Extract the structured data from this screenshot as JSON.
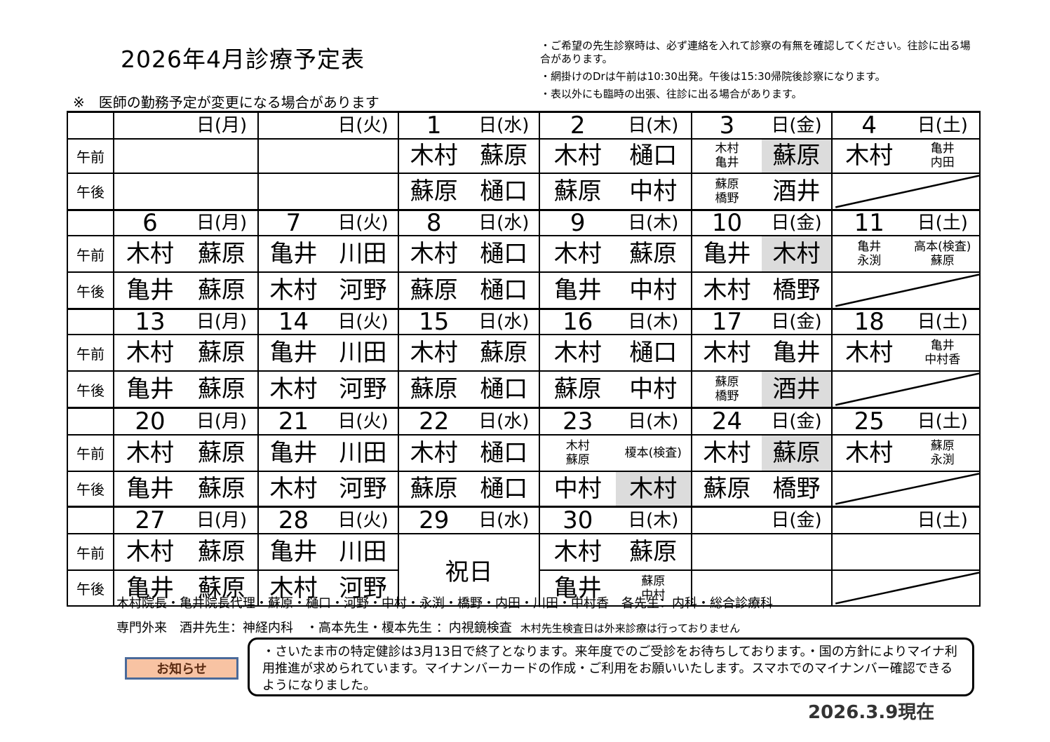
{
  "header": {
    "title": "2026年4月診療予定表",
    "subtitle": "※　医師の勤務予定が変更になる場合があります",
    "notes": [
      "・ご希望の先生診察時は、必ず連絡を入れて診察の有無を確認してください。往診に出る場合があります。",
      "・網掛けのDrは午前は10:30出発。午後は15:30帰院後診察になります。",
      "・表以外にも臨時の出張、往診に出る場合があります。"
    ]
  },
  "schedule": {
    "row_labels": {
      "am": "午前",
      "pm": "午後"
    },
    "shade_color": "#dcdcdc",
    "weeks": [
      {
        "days": [
          {
            "num": "",
            "dow": "日(月)",
            "am": null,
            "pm": null
          },
          {
            "num": "",
            "dow": "日(火)",
            "am": null,
            "pm": null
          },
          {
            "num": "1",
            "dow": "日(水)",
            "am": [
              {
                "t": "木村"
              },
              {
                "t": "蘇原"
              }
            ],
            "pm": [
              {
                "t": "蘇原"
              },
              {
                "t": "樋口"
              }
            ]
          },
          {
            "num": "2",
            "dow": "日(木)",
            "am": [
              {
                "t": "木村"
              },
              {
                "t": "樋口"
              }
            ],
            "pm": [
              {
                "t": "蘇原"
              },
              {
                "t": "中村"
              }
            ]
          },
          {
            "num": "3",
            "dow": "日(金)",
            "am": [
              {
                "s": [
                  "木村",
                  "亀井"
                ]
              },
              {
                "t": "蘇原",
                "shade": true
              }
            ],
            "pm": [
              {
                "s": [
                  "蘇原",
                  "橋野"
                ]
              },
              {
                "t": "酒井"
              }
            ]
          },
          {
            "num": "4",
            "dow": "日(土)",
            "am": [
              {
                "t": "木村"
              },
              {
                "s": [
                  "亀井",
                  "内田"
                ]
              }
            ],
            "pm": "closed"
          }
        ]
      },
      {
        "days": [
          {
            "num": "6",
            "dow": "日(月)",
            "am": [
              {
                "t": "木村"
              },
              {
                "t": "蘇原"
              }
            ],
            "pm": [
              {
                "t": "亀井"
              },
              {
                "t": "蘇原"
              }
            ]
          },
          {
            "num": "7",
            "dow": "日(火)",
            "am": [
              {
                "t": "亀井"
              },
              {
                "t": "川田"
              }
            ],
            "pm": [
              {
                "t": "木村"
              },
              {
                "t": "河野"
              }
            ]
          },
          {
            "num": "8",
            "dow": "日(水)",
            "am": [
              {
                "t": "木村"
              },
              {
                "t": "樋口"
              }
            ],
            "pm": [
              {
                "t": "蘇原"
              },
              {
                "t": "樋口"
              }
            ]
          },
          {
            "num": "9",
            "dow": "日(木)",
            "am": [
              {
                "t": "木村"
              },
              {
                "t": "蘇原"
              }
            ],
            "pm": [
              {
                "t": "亀井"
              },
              {
                "t": "中村"
              }
            ]
          },
          {
            "num": "10",
            "dow": "日(金)",
            "am": [
              {
                "t": "亀井"
              },
              {
                "t": "木村",
                "shade": true
              }
            ],
            "pm": [
              {
                "t": "木村"
              },
              {
                "t": "橋野"
              }
            ]
          },
          {
            "num": "11",
            "dow": "日(土)",
            "am": [
              {
                "s": [
                  "亀井",
                  "永渕"
                ]
              },
              {
                "s": [
                  "高本(検査)",
                  "蘇原"
                ]
              }
            ],
            "pm": "closed"
          }
        ]
      },
      {
        "days": [
          {
            "num": "13",
            "dow": "日(月)",
            "am": [
              {
                "t": "木村"
              },
              {
                "t": "蘇原"
              }
            ],
            "pm": [
              {
                "t": "亀井"
              },
              {
                "t": "蘇原"
              }
            ]
          },
          {
            "num": "14",
            "dow": "日(火)",
            "am": [
              {
                "t": "亀井"
              },
              {
                "t": "川田"
              }
            ],
            "pm": [
              {
                "t": "木村"
              },
              {
                "t": "河野"
              }
            ]
          },
          {
            "num": "15",
            "dow": "日(水)",
            "am": [
              {
                "t": "木村"
              },
              {
                "t": "蘇原"
              }
            ],
            "pm": [
              {
                "t": "蘇原"
              },
              {
                "t": "樋口"
              }
            ]
          },
          {
            "num": "16",
            "dow": "日(木)",
            "am": [
              {
                "t": "木村"
              },
              {
                "t": "樋口"
              }
            ],
            "pm": [
              {
                "t": "蘇原"
              },
              {
                "t": "中村"
              }
            ]
          },
          {
            "num": "17",
            "dow": "日(金)",
            "am": [
              {
                "t": "木村"
              },
              {
                "t": "亀井"
              }
            ],
            "pm": [
              {
                "s": [
                  "蘇原",
                  "橋野"
                ]
              },
              {
                "t": "酒井",
                "shade": true
              }
            ]
          },
          {
            "num": "18",
            "dow": "日(土)",
            "am": [
              {
                "t": "木村"
              },
              {
                "s": [
                  "亀井",
                  "中村香"
                ]
              }
            ],
            "pm": "closed"
          }
        ]
      },
      {
        "days": [
          {
            "num": "20",
            "dow": "日(月)",
            "am": [
              {
                "t": "木村"
              },
              {
                "t": "蘇原"
              }
            ],
            "pm": [
              {
                "t": "亀井"
              },
              {
                "t": "蘇原"
              }
            ]
          },
          {
            "num": "21",
            "dow": "日(火)",
            "am": [
              {
                "t": "亀井"
              },
              {
                "t": "川田"
              }
            ],
            "pm": [
              {
                "t": "木村"
              },
              {
                "t": "河野"
              }
            ]
          },
          {
            "num": "22",
            "dow": "日(水)",
            "am": [
              {
                "t": "木村"
              },
              {
                "t": "樋口"
              }
            ],
            "pm": [
              {
                "t": "蘇原"
              },
              {
                "t": "樋口"
              }
            ]
          },
          {
            "num": "23",
            "dow": "日(木)",
            "am": [
              {
                "s": [
                  "木村",
                  "蘇原"
                ]
              },
              {
                "s": [
                  "榎本(検査)"
                ]
              }
            ],
            "pm": [
              {
                "t": "中村"
              },
              {
                "t": "木村",
                "shade": true
              }
            ]
          },
          {
            "num": "24",
            "dow": "日(金)",
            "am": [
              {
                "t": "木村"
              },
              {
                "t": "蘇原",
                "shade": true
              }
            ],
            "pm": [
              {
                "t": "蘇原"
              },
              {
                "t": "橋野"
              }
            ]
          },
          {
            "num": "25",
            "dow": "日(土)",
            "am": [
              {
                "t": "木村"
              },
              {
                "s": [
                  "蘇原",
                  "永渕"
                ]
              }
            ],
            "pm": "closed"
          }
        ]
      },
      {
        "days": [
          {
            "num": "27",
            "dow": "日(月)",
            "am": [
              {
                "t": "木村"
              },
              {
                "t": "蘇原"
              }
            ],
            "pm": [
              {
                "t": "亀井"
              },
              {
                "t": "蘇原"
              }
            ]
          },
          {
            "num": "28",
            "dow": "日(火)",
            "am": [
              {
                "t": "亀井"
              },
              {
                "t": "川田"
              }
            ],
            "pm": [
              {
                "t": "木村"
              },
              {
                "t": "河野"
              }
            ]
          },
          {
            "num": "29",
            "dow": "日(水)",
            "holiday": "祝日"
          },
          {
            "num": "30",
            "dow": "日(木)",
            "am": [
              {
                "t": "木村"
              },
              {
                "t": "蘇原"
              }
            ],
            "pm": [
              {
                "t": "亀井"
              },
              {
                "s": [
                  "蘇原",
                  "中村"
                ]
              }
            ]
          },
          {
            "num": "",
            "dow": "日(金)",
            "am": null,
            "pm": null
          },
          {
            "num": "",
            "dow": "日(土)",
            "am": null,
            "pm": "closed"
          }
        ]
      }
    ]
  },
  "footer": {
    "doctors_line": "木村院長・亀井院長代理・蘇原・樋口・河野・中村・永渕・橋野・内田・川田・中村香　各先生：内科・総合診療科",
    "specialty_line": "専門外来　酒井先生：神経内科　・高本先生・榎本先生 ：内視鏡検査",
    "specialty_note": "木村先生検査日は外来診療は行っておりません",
    "notice_label": "お知らせ",
    "notice_button_color": "#f8c3a3",
    "notice_text": "・さいたま市の特定健診は3月13日で終了となります。来年度でのご受診をお待ちしております。・国の方針によりマイナ利用推進が求められています。マイナンバーカードの作成・ご利用をお願いいたします。スマホでのマイナンバー確認できるようになりました。",
    "as_of": "2026.3.9現在"
  }
}
